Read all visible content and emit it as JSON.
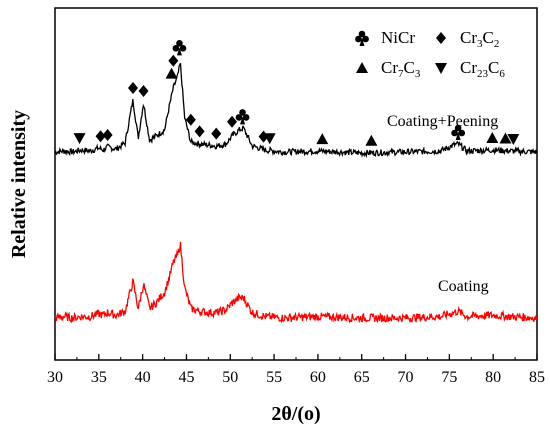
{
  "chart_data": {
    "type": "line",
    "xlabel": "2θ/(o)",
    "ylabel": "Relative intensity",
    "xlim": [
      30,
      85
    ],
    "x_ticks": [
      "30",
      "35",
      "40",
      "45",
      "50",
      "55",
      "60",
      "65",
      "70",
      "75",
      "80",
      "85"
    ],
    "y_ticks_shown": false,
    "legend_placement": "top-right",
    "legend": [
      {
        "symbol": "club",
        "name": "NiCr"
      },
      {
        "symbol": "diamond",
        "name": "Cr3C2"
      },
      {
        "symbol": "triangle-up",
        "name": "Cr7C3"
      },
      {
        "symbol": "triangle-down",
        "name": "Cr23C6"
      }
    ],
    "series": [
      {
        "name": "Coating+Peening",
        "color": "#000000",
        "x": [
          30,
          31,
          32,
          33,
          34,
          35,
          35.5,
          36,
          37,
          38,
          38.9,
          39.5,
          40.1,
          40.8,
          41.5,
          42.5,
          43,
          43.5,
          44,
          44.3,
          44.8,
          45.5,
          46.5,
          47.5,
          48.5,
          49.5,
          50.2,
          51,
          51.5,
          52.5,
          54,
          56,
          60,
          65,
          70,
          74,
          75.5,
          76,
          77,
          80,
          82,
          85
        ],
        "y": [
          6,
          7,
          6,
          8,
          7,
          10,
          8,
          11,
          9,
          15,
          58,
          20,
          55,
          18,
          22,
          28,
          50,
          70,
          82,
          95,
          40,
          16,
          14,
          13,
          12,
          14,
          22,
          28,
          30,
          12,
          8,
          6,
          7,
          5,
          6,
          7,
          13,
          14,
          7,
          8,
          7,
          6
        ]
      },
      {
        "name": "Coating",
        "color": "#ff0000",
        "x": [
          30,
          31,
          32,
          33,
          34,
          35,
          35.5,
          36,
          37,
          38,
          38.9,
          39.5,
          40.1,
          40.8,
          41.5,
          42.5,
          43,
          43.5,
          44,
          44.3,
          44.8,
          45.5,
          46.5,
          47.5,
          48.5,
          49.5,
          50.2,
          51,
          51.5,
          52.5,
          54,
          56,
          60,
          65,
          70,
          74,
          75.5,
          76,
          77,
          80,
          82,
          85
        ],
        "y": [
          3,
          4,
          3,
          4,
          4,
          6,
          5,
          7,
          5,
          8,
          30,
          10,
          28,
          10,
          14,
          22,
          32,
          44,
          50,
          58,
          25,
          10,
          8,
          7,
          7,
          9,
          14,
          18,
          18,
          7,
          4,
          3,
          4,
          3,
          3,
          4,
          7,
          8,
          4,
          5,
          4,
          3
        ]
      }
    ],
    "annotations": [
      {
        "label": "Coating+Peening"
      },
      {
        "label": "Coating"
      }
    ],
    "peak_markers": [
      {
        "symbol": "triangle-down",
        "x": 32.8
      },
      {
        "symbol": "diamond",
        "x": 35.2
      },
      {
        "symbol": "diamond",
        "x": 36
      },
      {
        "symbol": "diamond",
        "x": 38.9
      },
      {
        "symbol": "diamond",
        "x": 40.1
      },
      {
        "symbol": "triangle-up",
        "x": 43.3
      },
      {
        "symbol": "diamond",
        "x": 43.5
      },
      {
        "symbol": "club",
        "x": 44.2
      },
      {
        "symbol": "diamond",
        "x": 45.5
      },
      {
        "symbol": "diamond",
        "x": 46.5
      },
      {
        "symbol": "diamond",
        "x": 48.4
      },
      {
        "symbol": "diamond",
        "x": 50.2
      },
      {
        "symbol": "club",
        "x": 51.4
      },
      {
        "symbol": "diamond",
        "x": 53.8
      },
      {
        "symbol": "triangle-down",
        "x": 54.5
      },
      {
        "symbol": "triangle-up",
        "x": 60.5
      },
      {
        "symbol": "triangle-up",
        "x": 66.1
      },
      {
        "symbol": "club",
        "x": 76
      },
      {
        "symbol": "triangle-up",
        "x": 79.9
      },
      {
        "symbol": "triangle-up",
        "x": 81.4
      },
      {
        "symbol": "triangle-down",
        "x": 82.3
      }
    ]
  }
}
